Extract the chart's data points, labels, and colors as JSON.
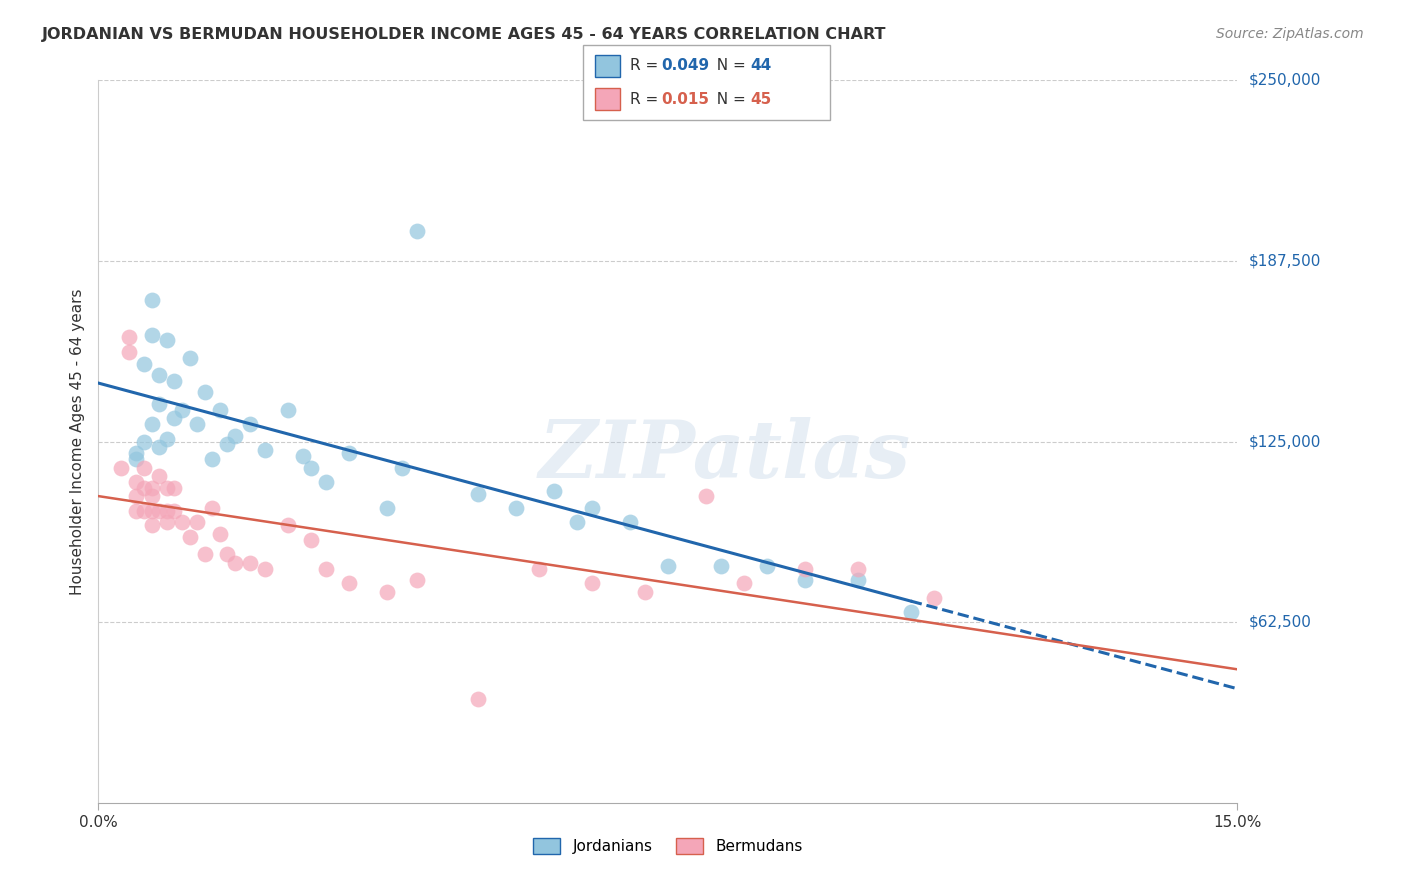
{
  "title": "JORDANIAN VS BERMUDAN HOUSEHOLDER INCOME AGES 45 - 64 YEARS CORRELATION CHART",
  "source": "Source: ZipAtlas.com",
  "ylabel": "Householder Income Ages 45 - 64 years",
  "xlim": [
    0.0,
    0.15
  ],
  "ylim": [
    0,
    250000
  ],
  "background_color": "#ffffff",
  "grid_color": "#cccccc",
  "watermark": "ZIPatlas",
  "blue_color": "#92c5de",
  "pink_color": "#f4a6b8",
  "blue_line_color": "#2166ac",
  "pink_line_color": "#d6604d",
  "legend_r_blue": "0.049",
  "legend_n_blue": "44",
  "legend_r_pink": "0.015",
  "legend_n_pink": "45",
  "jordanians_x": [
    0.005,
    0.005,
    0.006,
    0.006,
    0.007,
    0.007,
    0.007,
    0.008,
    0.008,
    0.008,
    0.009,
    0.009,
    0.01,
    0.01,
    0.011,
    0.012,
    0.013,
    0.014,
    0.015,
    0.016,
    0.017,
    0.018,
    0.02,
    0.022,
    0.025,
    0.027,
    0.028,
    0.03,
    0.033,
    0.038,
    0.04,
    0.042,
    0.05,
    0.055,
    0.06,
    0.063,
    0.065,
    0.07,
    0.075,
    0.082,
    0.088,
    0.093,
    0.1,
    0.107
  ],
  "jordanians_y": [
    121000,
    119000,
    125000,
    152000,
    174000,
    162000,
    131000,
    148000,
    138000,
    123000,
    160000,
    126000,
    133000,
    146000,
    136000,
    154000,
    131000,
    142000,
    119000,
    136000,
    124000,
    127000,
    131000,
    122000,
    136000,
    120000,
    116000,
    111000,
    121000,
    102000,
    116000,
    198000,
    107000,
    102000,
    108000,
    97000,
    102000,
    97000,
    82000,
    82000,
    82000,
    77000,
    77000,
    66000
  ],
  "bermudans_x": [
    0.003,
    0.004,
    0.004,
    0.005,
    0.005,
    0.005,
    0.006,
    0.006,
    0.006,
    0.007,
    0.007,
    0.007,
    0.007,
    0.008,
    0.008,
    0.009,
    0.009,
    0.009,
    0.01,
    0.01,
    0.011,
    0.012,
    0.013,
    0.014,
    0.015,
    0.016,
    0.017,
    0.018,
    0.02,
    0.022,
    0.025,
    0.028,
    0.03,
    0.033,
    0.038,
    0.042,
    0.05,
    0.058,
    0.065,
    0.072,
    0.08,
    0.085,
    0.093,
    0.1,
    0.11
  ],
  "bermudans_y": [
    116000,
    161000,
    156000,
    111000,
    106000,
    101000,
    116000,
    109000,
    101000,
    109000,
    106000,
    101000,
    96000,
    113000,
    101000,
    109000,
    101000,
    97000,
    109000,
    101000,
    97000,
    92000,
    97000,
    86000,
    102000,
    93000,
    86000,
    83000,
    83000,
    81000,
    96000,
    91000,
    81000,
    76000,
    73000,
    77000,
    36000,
    81000,
    76000,
    73000,
    106000,
    76000,
    81000,
    81000,
    71000
  ]
}
